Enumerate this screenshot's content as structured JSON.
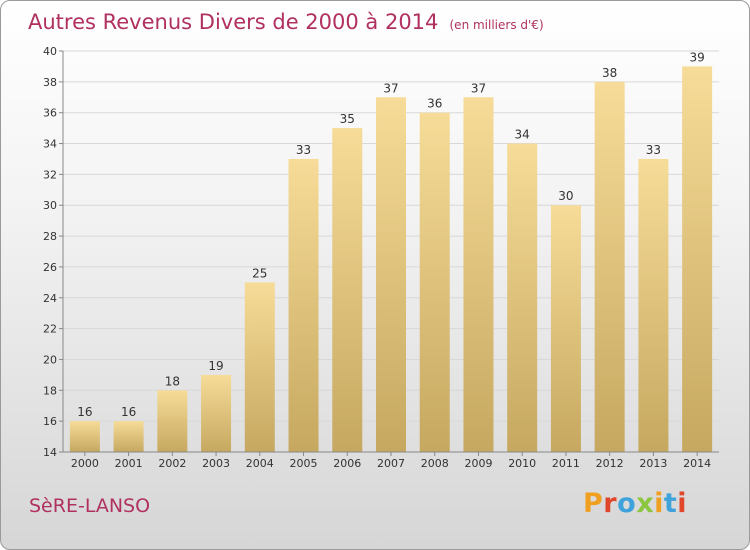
{
  "title": "Autres Revenus Divers de 2000 à 2014",
  "subtitle": "(en milliers d'€)",
  "commune": "SèRE-LANSO",
  "logo": {
    "letters": [
      "P",
      "r",
      "o",
      "x",
      "i",
      "t",
      "i"
    ],
    "colors": [
      "#f0a020",
      "#e0462a",
      "#3fa2db",
      "#8cc63f",
      "#f0a020",
      "#3fa2db",
      "#e0462a"
    ]
  },
  "colors": {
    "accent": "#b03060",
    "bar_light": "#f6dc98",
    "bar_dark": "#c6a860",
    "text": "#333333"
  },
  "chart_data": {
    "type": "bar",
    "categories": [
      "2000",
      "2001",
      "2002",
      "2003",
      "2004",
      "2005",
      "2006",
      "2007",
      "2008",
      "2009",
      "2010",
      "2011",
      "2012",
      "2013",
      "2014"
    ],
    "values": [
      16,
      16,
      18,
      19,
      25,
      33,
      35,
      37,
      36,
      37,
      34,
      30,
      38,
      33,
      39
    ],
    "data_labels": [
      "16",
      "16",
      "18",
      "19",
      "25",
      "33",
      "35",
      "37",
      "36",
      "37",
      "34",
      "30",
      "38",
      "33",
      "39"
    ],
    "yticks": [
      "14",
      "16",
      "18",
      "20",
      "22",
      "24",
      "26",
      "28",
      "30",
      "32",
      "34",
      "36",
      "38",
      "40"
    ],
    "ylim": [
      14,
      40
    ],
    "xlabel": "",
    "ylabel": "",
    "grid": true,
    "legend": "none"
  }
}
